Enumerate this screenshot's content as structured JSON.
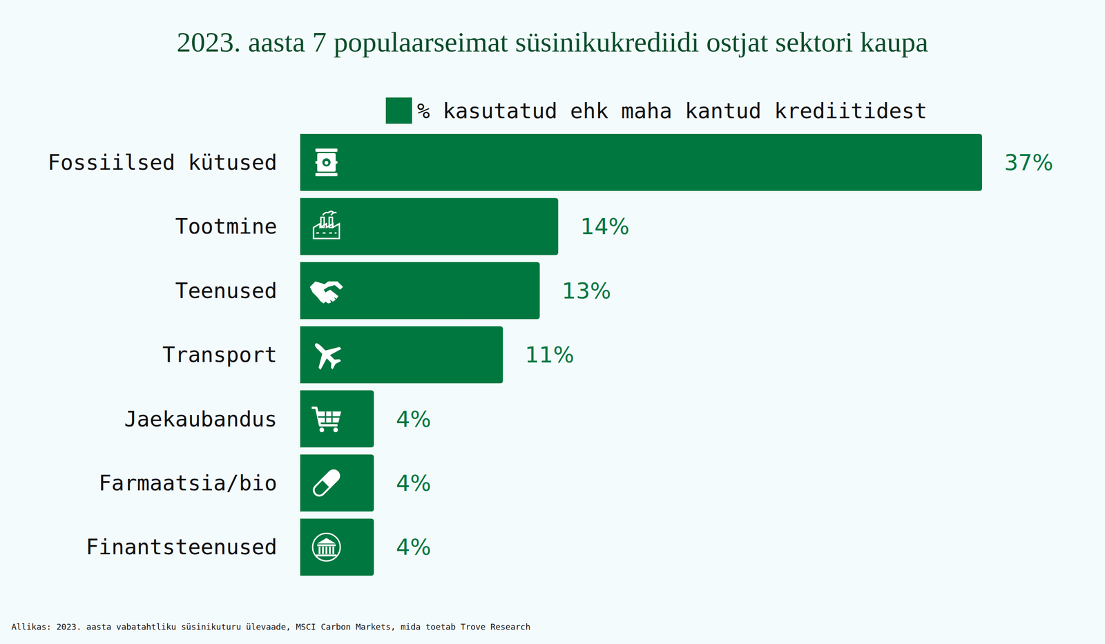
{
  "chart_data": {
    "type": "bar",
    "orientation": "horizontal",
    "title": "2023. aasta 7 populaarseimat süsinikukrediidi ostjat sektori kaupa",
    "categories": [
      "Fossiilsed kütused",
      "Tootmine",
      "Teenused",
      "Transport",
      "Jaekaubandus",
      "Farmaatsia/bio",
      "Finantsteenused"
    ],
    "series": [
      {
        "name": "% kasutatud ehk maha kantud krediitidest",
        "color": "#00773f",
        "values": [
          37,
          14,
          13,
          11,
          4,
          4,
          4
        ],
        "value_labels": [
          "37%",
          "14%",
          "13%",
          "11%",
          "4%",
          "4%",
          "4%"
        ]
      }
    ],
    "data_labels": true,
    "tick_labels": "y",
    "legend": "top",
    "source": "Allikas: 2023. aasta vabatahtliku süsinikuturu ülevaade, MSCI Carbon Markets, mida toetab Trove Research"
  }
}
